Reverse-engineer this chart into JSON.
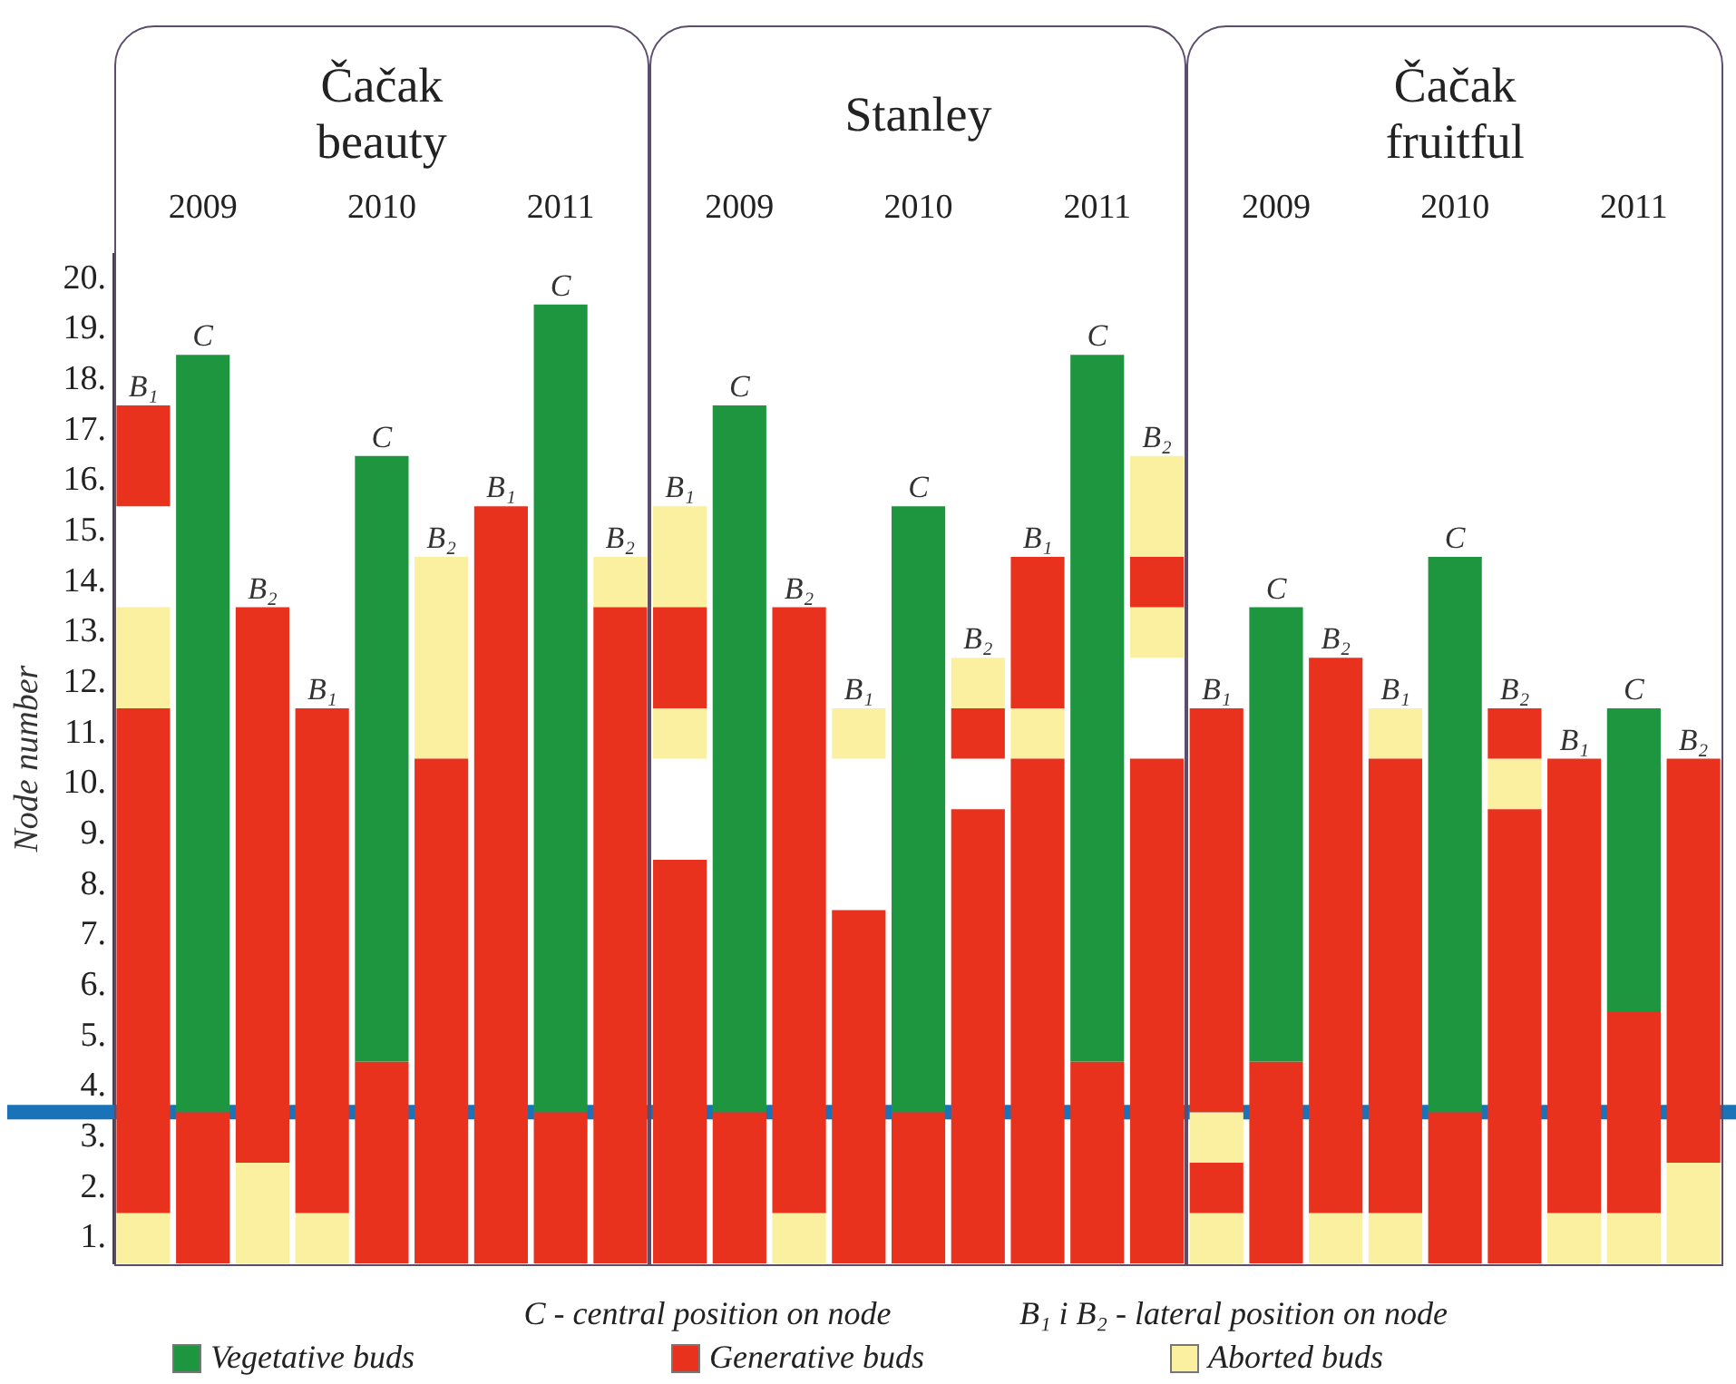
{
  "chart_data": {
    "type": "bar",
    "ylabel": "Node number",
    "categories": [
      "B₁",
      "C",
      "B₂",
      "B₁",
      "C",
      "B₂",
      "B₁",
      "C",
      "B₂",
      "B₁",
      "C",
      "B₂",
      "B₁",
      "C",
      "B₂",
      "B₁",
      "C",
      "B₂",
      "B₁",
      "C",
      "B₂",
      "B₁",
      "C",
      "B₂",
      "B₁",
      "C",
      "B₂"
    ],
    "series": [
      {
        "name": "Vegetative buds",
        "color": "#1e9640",
        "base": [
          null,
          3.5,
          null,
          null,
          4.5,
          null,
          null,
          3.5,
          null,
          null,
          3.5,
          null,
          null,
          3.5,
          null,
          null,
          4.5,
          null,
          null,
          4.5,
          null,
          null,
          3.5,
          null,
          null,
          5.5,
          null
        ],
        "values": [
          null,
          15,
          null,
          null,
          12,
          null,
          null,
          16,
          null,
          null,
          14,
          null,
          null,
          12,
          null,
          null,
          14,
          null,
          null,
          9,
          null,
          null,
          11,
          null,
          null,
          6,
          null
        ]
      },
      {
        "name": "Generative buds",
        "color": "#e8321e",
        "base": [
          1.5,
          0.5,
          2.5,
          1.5,
          0.5,
          0.5,
          0.5,
          0.5,
          0.5,
          0.5,
          0.5,
          1.5,
          0.5,
          0.5,
          0.5,
          0.5,
          0.5,
          0.5,
          1.5,
          0.5,
          1.5,
          1.5,
          0.5,
          0.5,
          1.5,
          1.5,
          2.5
        ],
        "values": [
          10,
          3,
          11,
          10,
          4,
          10,
          15,
          3,
          13,
          8,
          3,
          12,
          7,
          3,
          9,
          10,
          4,
          10,
          1,
          4,
          11,
          9,
          3,
          9,
          9,
          4,
          8
        ]
      },
      {
        "color": "#e8321e",
        "base": [
          15.5,
          null,
          null,
          null,
          null,
          null,
          null,
          null,
          null,
          11.5,
          null,
          null,
          null,
          null,
          10.5,
          11.5,
          null,
          13.5,
          3.5,
          null,
          null,
          null,
          null,
          10.5,
          null,
          null,
          null
        ],
        "values": [
          2,
          null,
          null,
          null,
          null,
          null,
          null,
          null,
          null,
          2,
          null,
          null,
          null,
          null,
          1,
          3,
          null,
          1,
          8,
          null,
          null,
          null,
          null,
          1,
          null,
          null,
          null
        ]
      },
      {
        "name": "Aborted buds",
        "color": "#fbf0a0",
        "base": [
          0.5,
          null,
          0.5,
          0.5,
          null,
          10.5,
          null,
          null,
          13.5,
          10.5,
          null,
          0.5,
          10.5,
          null,
          11.5,
          10.5,
          null,
          12.5,
          0.5,
          null,
          0.5,
          0.5,
          null,
          9.5,
          0.5,
          0.5,
          0.5
        ],
        "values": [
          1,
          null,
          2,
          1,
          null,
          4,
          null,
          null,
          1,
          1,
          null,
          1,
          1,
          null,
          1,
          1,
          null,
          1,
          1,
          null,
          1,
          1,
          null,
          1,
          1,
          1,
          2
        ]
      },
      {
        "color": "#fbf0a0",
        "base": [
          11.5,
          null,
          null,
          null,
          null,
          null,
          null,
          null,
          null,
          13.5,
          null,
          null,
          null,
          null,
          null,
          null,
          null,
          14.5,
          2.5,
          null,
          null,
          10.5,
          null,
          null,
          null,
          null,
          null
        ],
        "values": [
          2,
          null,
          null,
          null,
          null,
          null,
          null,
          null,
          null,
          2,
          null,
          null,
          null,
          null,
          null,
          null,
          null,
          2,
          1,
          null,
          null,
          1,
          null,
          null,
          null,
          null,
          null
        ]
      }
    ],
    "ylim": [
      0.5,
      20.5
    ],
    "yticks": [
      {
        "value": 1,
        "label": "1."
      },
      {
        "value": 2,
        "label": "2."
      },
      {
        "value": 3,
        "label": "3."
      },
      {
        "value": 4,
        "label": "4."
      },
      {
        "value": 5,
        "label": "5."
      },
      {
        "value": 6,
        "label": "6."
      },
      {
        "value": 7,
        "label": "7."
      },
      {
        "value": 8,
        "label": "8."
      },
      {
        "value": 9,
        "label": "9."
      },
      {
        "value": 10,
        "label": "10."
      },
      {
        "value": 11,
        "label": "11."
      },
      {
        "value": 12,
        "label": "12."
      },
      {
        "value": 13,
        "label": "13."
      },
      {
        "value": 14,
        "label": "14."
      },
      {
        "value": 15,
        "label": "15."
      },
      {
        "value": 16,
        "label": "16."
      },
      {
        "value": 17,
        "label": "17."
      },
      {
        "value": 18,
        "label": "18."
      },
      {
        "value": 19,
        "label": "19."
      },
      {
        "value": 20,
        "label": "20."
      }
    ],
    "ref_lines": [
      {
        "axis": "y",
        "value": 3.5,
        "color": "#1a73b8"
      }
    ],
    "annotations": [
      "Čačak\nbeauty",
      "Stanley",
      "Čačak\nfruitful",
      "2009",
      "2010",
      "2011",
      "2009",
      "2010",
      "2011",
      "2009",
      "2010",
      "2011",
      "C - central position on node",
      "B₁ i B₂ - lateral position on node"
    ],
    "grid": false,
    "legend": "bottom"
  }
}
